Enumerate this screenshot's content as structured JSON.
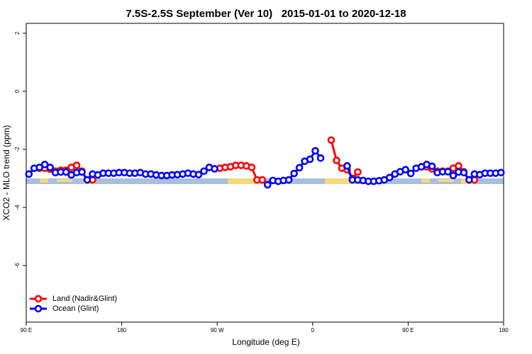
{
  "chart_data": {
    "type": "line",
    "title": "7.5S-2.5S September (Ver 10)   2015-01-01 to 2020-12-18",
    "xlabel": "Longitude (deg E)",
    "ylabel": "XCO2 - MLO trend (ppm)",
    "x": [
      92.5,
      97.5,
      102.5,
      107.5,
      112.5,
      117.5,
      122.5,
      127.5,
      132.5,
      137.5,
      142.5,
      147.5,
      152.5,
      157.5,
      162.5,
      167.5,
      172.5,
      177.5,
      182.5,
      187.5,
      192.5,
      197.5,
      202.5,
      207.5,
      212.5,
      217.5,
      222.5,
      227.5,
      232.5,
      237.5,
      242.5,
      247.5,
      252.5,
      257.5,
      262.5,
      267.5,
      272.5,
      277.5,
      282.5,
      287.5,
      292.5,
      297.5,
      302.5,
      307.5,
      312.5,
      317.5,
      322.5,
      327.5,
      332.5,
      337.5,
      342.5,
      347.5,
      352.5,
      357.5,
      362.5,
      367.5,
      372.5,
      377.5,
      382.5,
      387.5,
      392.5,
      397.5,
      402.5,
      407.5,
      412.5,
      417.5,
      422.5,
      427.5,
      432.5,
      437.5,
      442.5,
      447.5,
      452.5,
      457.5,
      462.5,
      467.5,
      472.5,
      477.5,
      482.5,
      487.5,
      492.5,
      497.5,
      502.5,
      507.5,
      512.5,
      517.5,
      522.5,
      527.5,
      532.5,
      537.5
    ],
    "series": [
      {
        "name": "Land (Nadir&Glint)",
        "color": "#ff0000",
        "values": [
          null,
          null,
          -2.65,
          -2.65,
          -2.68,
          -2.75,
          -2.72,
          -2.72,
          -2.62,
          -2.55,
          -2.75,
          -3.05,
          -3.05,
          null,
          null,
          null,
          null,
          null,
          null,
          null,
          null,
          null,
          null,
          null,
          null,
          null,
          null,
          null,
          null,
          null,
          null,
          null,
          null,
          null,
          null,
          null,
          -2.65,
          -2.62,
          -2.6,
          -2.55,
          -2.55,
          -2.57,
          -2.62,
          -3.05,
          -3.05,
          null,
          null,
          null,
          null,
          null,
          null,
          null,
          null,
          null,
          null,
          null,
          null,
          -1.68,
          -2.38,
          -2.65,
          -2.7,
          -3.0,
          -2.78,
          null,
          null,
          null,
          null,
          null,
          null,
          null,
          null,
          null,
          null,
          null,
          -2.6,
          -2.6,
          -2.67,
          -2.75,
          -2.75,
          -2.75,
          -2.65,
          -2.57,
          -2.77,
          -3.05,
          -3.05,
          null,
          null,
          null,
          null,
          null
        ]
      },
      {
        "name": "Ocean (Glint)",
        "color": "#0000ff",
        "values": [
          -2.85,
          -2.65,
          -2.62,
          -2.52,
          -2.62,
          -2.8,
          -2.78,
          -2.78,
          -2.88,
          -2.8,
          -2.78,
          -3.05,
          -2.85,
          -2.88,
          -2.82,
          -2.82,
          -2.82,
          -2.8,
          -2.8,
          -2.82,
          -2.82,
          -2.8,
          -2.85,
          -2.85,
          -2.88,
          -2.9,
          -2.9,
          -2.88,
          -2.87,
          -2.85,
          -2.82,
          -2.85,
          -2.87,
          -2.75,
          -2.62,
          -2.67,
          null,
          null,
          null,
          null,
          null,
          null,
          null,
          null,
          null,
          -3.22,
          -3.07,
          -3.1,
          -3.07,
          -3.05,
          -2.83,
          -2.63,
          -2.41,
          -2.34,
          -2.05,
          -2.3,
          null,
          null,
          null,
          null,
          -2.57,
          -3.05,
          -3.05,
          -3.07,
          -3.1,
          -3.1,
          -3.08,
          -3.05,
          -2.97,
          -2.85,
          -2.77,
          -2.7,
          -2.83,
          -2.65,
          -2.6,
          -2.52,
          -2.58,
          -2.8,
          -2.77,
          -2.77,
          -2.9,
          -2.78,
          -2.8,
          -3.05,
          -2.85,
          -2.87,
          -2.82,
          -2.82,
          -2.82,
          -2.8
        ]
      }
    ],
    "xlim": [
      90,
      540
    ],
    "xticks": [
      {
        "value": 90,
        "label": "90 E"
      },
      180,
      {
        "value": 270,
        "label": "90 W"
      },
      {
        "value": 360,
        "label": "0"
      },
      {
        "value": 450,
        "label": "90 E"
      },
      {
        "value": 540,
        "label": "180"
      }
    ],
    "ylim": [
      -7.95,
      2.34
    ],
    "yticks": [
      2,
      0,
      -2,
      -4,
      -6
    ],
    "legend": "bottom-left"
  }
}
